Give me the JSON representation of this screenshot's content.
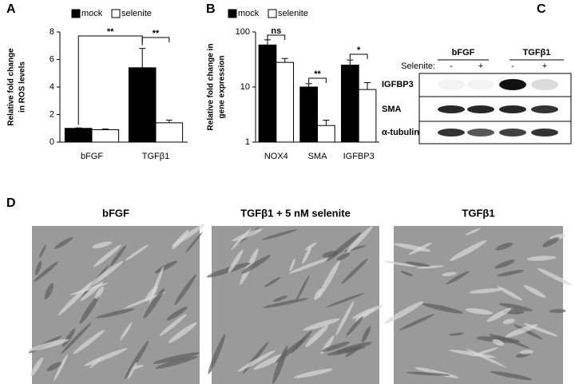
{
  "panel_labels": [
    "A",
    "B",
    "C",
    "D"
  ],
  "chart_data": [
    {
      "type": "bar",
      "ylabel": [
        "Relative fold change",
        "in ROS levels"
      ],
      "categories": [
        "bFGF",
        "TGFβ1"
      ],
      "series": [
        {
          "name": "mock",
          "color": "#000000",
          "values": [
            1.0,
            5.4
          ],
          "errors": [
            0.03,
            1.4
          ]
        },
        {
          "name": "selenite",
          "color": "#ffffff",
          "values": [
            0.9,
            1.4
          ],
          "errors": [
            0.05,
            0.2
          ]
        }
      ],
      "ylim": [
        0,
        8
      ],
      "yticks": [
        0,
        2,
        4,
        6,
        8
      ],
      "log": false,
      "annotations": [
        "**",
        "**"
      ]
    },
    {
      "type": "bar",
      "ylabel": [
        "Relative fold change in",
        "gene expression"
      ],
      "categories": [
        "NOX4",
        "SMA",
        "IGFBP3"
      ],
      "series": [
        {
          "name": "mock",
          "color": "#000000",
          "values": [
            58,
            10,
            25
          ],
          "errors": [
            14,
            1.5,
            6
          ]
        },
        {
          "name": "selenite",
          "color": "#ffffff",
          "values": [
            28,
            2.0,
            9
          ],
          "errors": [
            5,
            0.5,
            3
          ]
        }
      ],
      "ylim": [
        1,
        100
      ],
      "yticks": [
        1,
        10,
        100
      ],
      "log": true,
      "annotations": [
        "ns",
        "**",
        "*"
      ]
    }
  ],
  "blot": {
    "groups": [
      "bFGF",
      "TGFβ1"
    ],
    "treatment": "Selenite:",
    "signs": [
      "-",
      "+",
      "-",
      "+"
    ],
    "rows": [
      "IGFBP3",
      "SMA",
      "α-tubulin"
    ]
  },
  "images": {
    "titles": [
      "bFGF",
      "TGFβ1 + 5 nM selenite",
      "TGFβ1"
    ]
  }
}
